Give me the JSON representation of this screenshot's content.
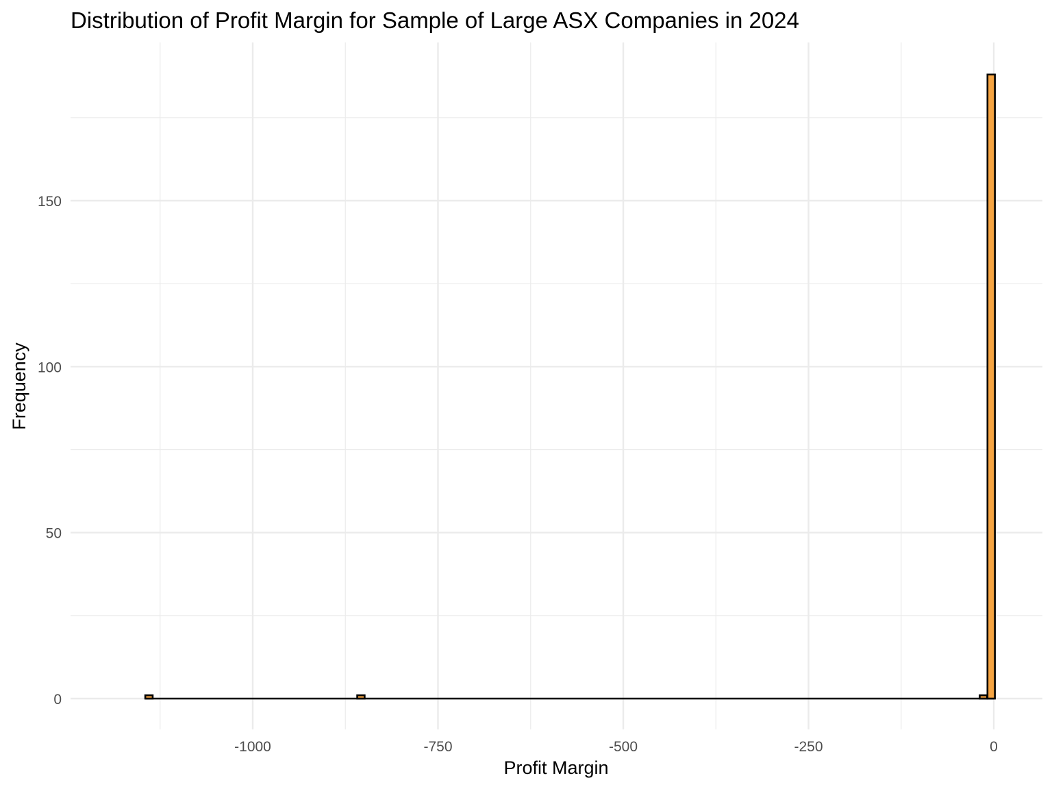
{
  "chart_data": {
    "type": "bar",
    "subtype": "histogram",
    "title": "Distribution of Profit Margin for Sample of Large ASX Companies in 2024",
    "xlabel": "Profit Margin",
    "ylabel": "Frequency",
    "xlim": [
      -1200,
      16
    ],
    "ylim": [
      -7,
      195
    ],
    "x_ticks": [
      -1000,
      -750,
      -500,
      -250,
      0
    ],
    "x_tick_labels": [
      "-1000",
      "-750",
      "-500",
      "-250",
      "0"
    ],
    "y_ticks": [
      0,
      50,
      100,
      150
    ],
    "y_tick_labels": [
      "0",
      "50",
      "100",
      "150"
    ],
    "grid": true,
    "bin_width": 10,
    "bar_color": "#f5a442",
    "bar_outline_color": "#000000",
    "bins": [
      {
        "x": -1140,
        "count": 1
      },
      {
        "x": -854,
        "count": 1
      },
      {
        "x": -14,
        "count": 1
      },
      {
        "x": -3.5,
        "count": 188
      }
    ],
    "x_range_with_bins": [
      -1145,
      1
    ]
  }
}
